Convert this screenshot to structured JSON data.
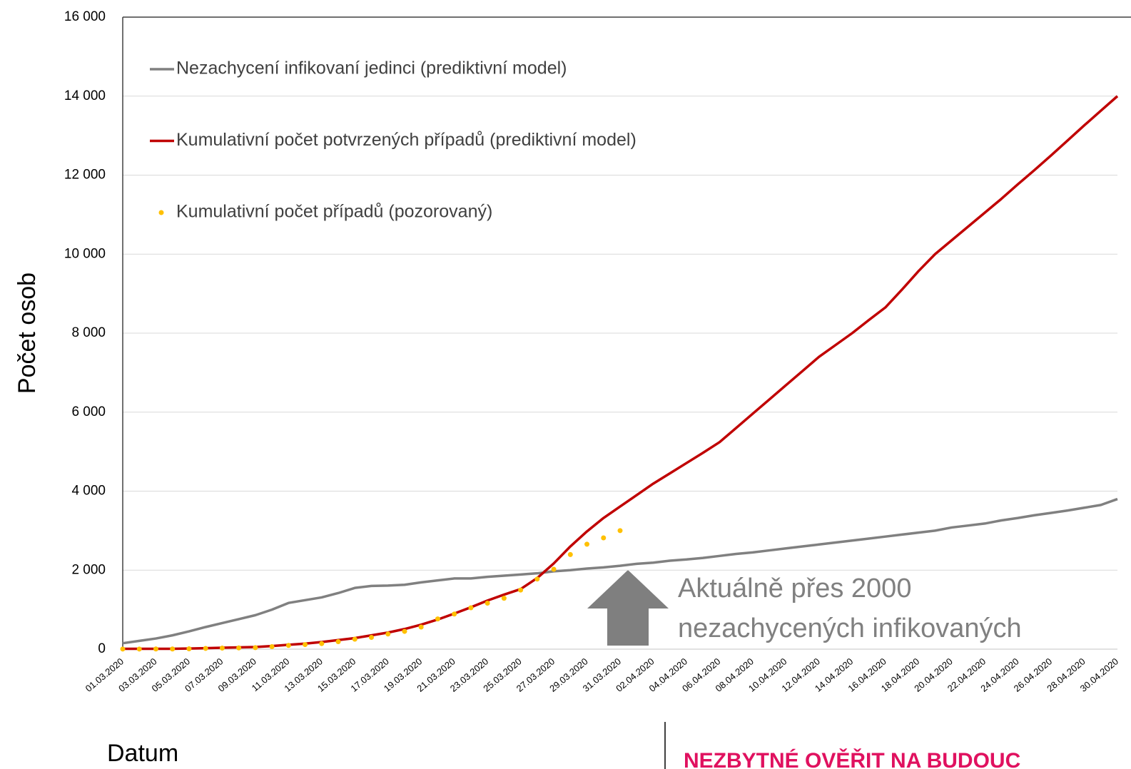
{
  "chart_data": {
    "type": "line",
    "ylabel": "Počet osob",
    "xlabel": "Datum",
    "categories": [
      "01.03.2020",
      null,
      "03.03.2020",
      null,
      "05.03.2020",
      null,
      "07.03.2020",
      null,
      "09.03.2020",
      null,
      "11.03.2020",
      null,
      "13.03.2020",
      null,
      "15.03.2020",
      null,
      "17.03.2020",
      null,
      "19.03.2020",
      null,
      "21.03.2020",
      null,
      "23.03.2020",
      null,
      "25.03.2020",
      null,
      "27.03.2020",
      null,
      "29.03.2020",
      null,
      "31.03.2020",
      null,
      "02.04.2020",
      null,
      "04.04.2020",
      null,
      "06.04.2020",
      null,
      "08.04.2020",
      null,
      "10.04.2020",
      null,
      "12.04.2020",
      null,
      "14.04.2020",
      null,
      "16.04.2020",
      null,
      "18.04.2020",
      null,
      "20.04.2020",
      null,
      "22.04.2020",
      null,
      "24.04.2020",
      null,
      "26.04.2020",
      null,
      "28.04.2020",
      null,
      "30.04.2020"
    ],
    "series": [
      {
        "name": "Nezachycení infikovaní jedinci (prediktivní model)",
        "color": "#808080",
        "marker": "line",
        "values": [
          150,
          210,
          270,
          350,
          450,
          560,
          660,
          760,
          860,
          1000,
          1170,
          1240,
          1310,
          1420,
          1550,
          1600,
          1610,
          1630,
          1690,
          1740,
          1790,
          1790,
          1830,
          1860,
          1890,
          1920,
          1970,
          2000,
          2040,
          2070,
          2110,
          2160,
          2190,
          2240,
          2270,
          2310,
          2360,
          2410,
          2450,
          2500,
          2550,
          2600,
          2650,
          2700,
          2750,
          2800,
          2850,
          2900,
          2950,
          3000,
          3080,
          3130,
          3180,
          3260,
          3320,
          3390,
          3450,
          3510,
          3580,
          3650,
          3800
        ]
      },
      {
        "name": "Kumulativní počet potvrzených případů (prediktivní model)",
        "color": "#c00000",
        "marker": "line",
        "values": [
          10,
          10,
          10,
          10,
          15,
          25,
          35,
          45,
          55,
          80,
          110,
          140,
          180,
          230,
          280,
          350,
          420,
          510,
          620,
          750,
          900,
          1060,
          1230,
          1380,
          1520,
          1800,
          2170,
          2600,
          2980,
          3320,
          3610,
          3900,
          4190,
          4450,
          4710,
          4970,
          5240,
          5600,
          5960,
          6320,
          6680,
          7040,
          7400,
          7700,
          8000,
          8330,
          8650,
          9100,
          9570,
          10000,
          10350,
          10700,
          11050,
          11400,
          11770,
          12130,
          12500,
          12880,
          13260,
          13630,
          14000
        ]
      },
      {
        "name": "Kumulativní počet případů (pozorovaný)",
        "color": "#ffc000",
        "marker": "dots",
        "values": [
          3,
          3,
          5,
          5,
          8,
          19,
          26,
          32,
          38,
          63,
          94,
          116,
          141,
          189,
          253,
          298,
          383,
          450,
          560,
          765,
          889,
          1047,
          1165,
          1289,
          1497,
          1775,
          2022,
          2395,
          2657,
          2817,
          3001,
          null,
          null,
          null,
          null,
          null,
          null,
          null,
          null,
          null,
          null,
          null,
          null,
          null,
          null,
          null,
          null,
          null,
          null,
          null,
          null,
          null,
          null,
          null,
          null,
          null,
          null,
          null,
          null,
          null,
          null
        ]
      }
    ],
    "ylim": [
      0,
      16000
    ],
    "yticks": [
      0,
      {
        "value": 2000,
        "label": "2 000"
      },
      {
        "value": 4000,
        "label": "4 000"
      },
      {
        "value": 6000,
        "label": "6 000"
      },
      {
        "value": 8000,
        "label": "8 000"
      },
      {
        "value": 10000,
        "label": "10 000"
      },
      {
        "value": 12000,
        "label": "12 000"
      },
      {
        "value": 14000,
        "label": "14 000"
      },
      {
        "value": 16000,
        "label": "16 000"
      }
    ],
    "grid": true,
    "legend": "upper left",
    "annotation": [
      "Aktuálně přes 2000",
      "nezachycených infikovaných"
    ],
    "note": "NEZBYTNÉ OVĚŘIT NA BUDOUC"
  }
}
